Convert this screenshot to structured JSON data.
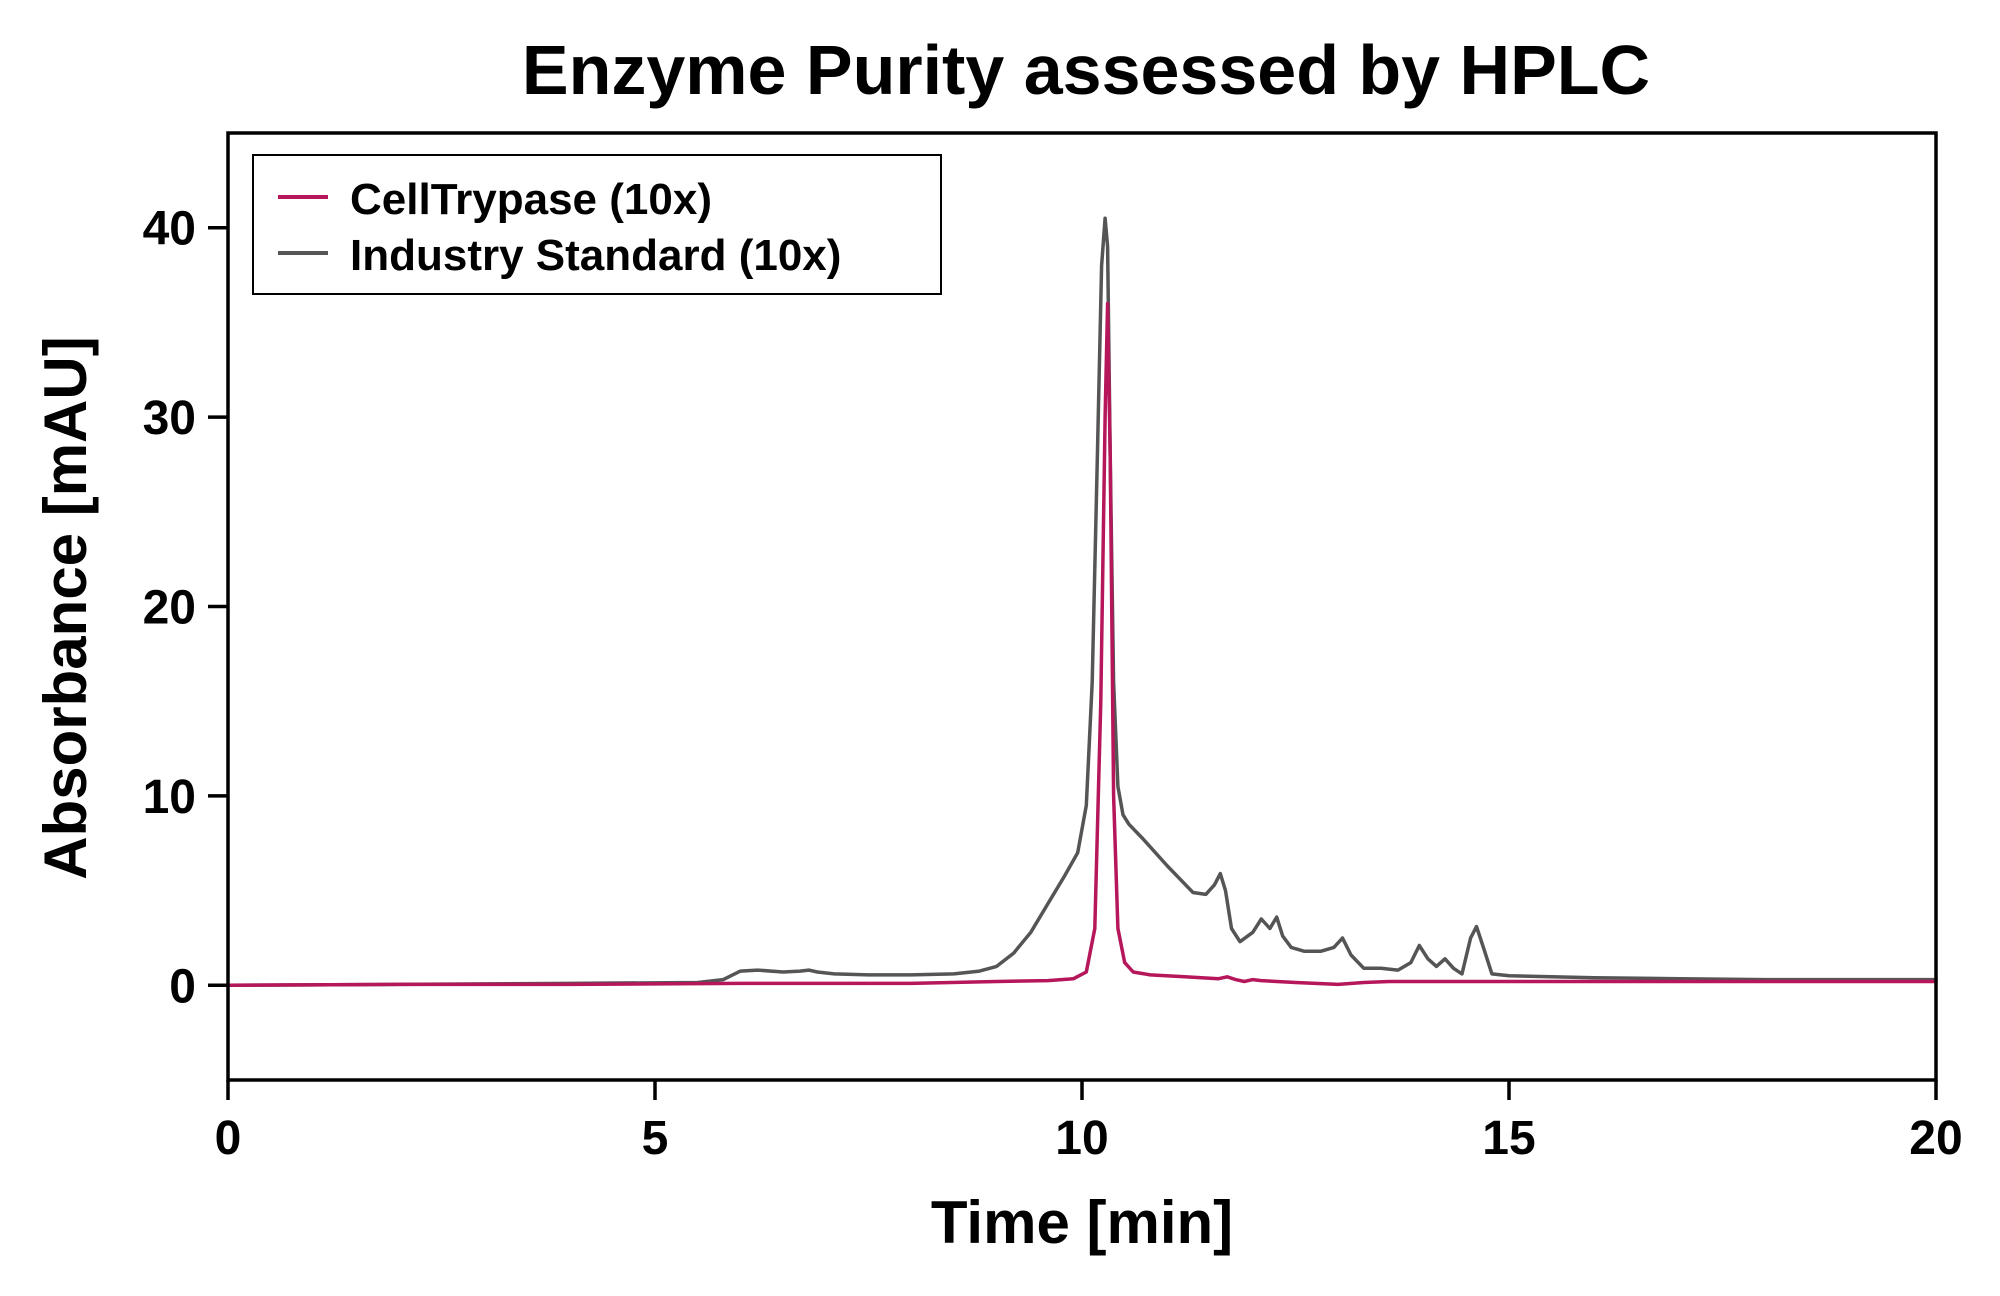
{
  "chart_data": {
    "type": "line",
    "title": "Enzyme Purity assessed by HPLC",
    "xlabel": "Time [min]",
    "ylabel": "Absorbance [mAU]",
    "xlim": [
      0,
      20
    ],
    "ylim": [
      -5,
      45
    ],
    "xticks": [
      0,
      5,
      10,
      15,
      20
    ],
    "yticks": [
      0,
      10,
      20,
      30,
      40
    ],
    "grid": false,
    "legend_position": "top-left",
    "series": [
      {
        "name": "CellTrypase (10x)",
        "color": "#b5175a",
        "x": [
          0,
          2,
          4,
          6,
          8,
          9,
          9.6,
          9.9,
          10.05,
          10.15,
          10.22,
          10.27,
          10.3,
          10.33,
          10.37,
          10.42,
          10.5,
          10.6,
          10.8,
          11.2,
          11.6,
          11.7,
          11.8,
          11.9,
          12.0,
          12.1,
          12.5,
          13.0,
          13.3,
          13.6,
          14.0,
          14.5,
          15,
          16,
          18,
          20
        ],
        "y": [
          0,
          0.05,
          0.05,
          0.1,
          0.1,
          0.2,
          0.25,
          0.35,
          0.7,
          3.0,
          15.0,
          30.0,
          36.0,
          28.0,
          10.0,
          3.0,
          1.2,
          0.7,
          0.55,
          0.45,
          0.35,
          0.45,
          0.3,
          0.2,
          0.3,
          0.25,
          0.15,
          0.05,
          0.15,
          0.2,
          0.2,
          0.2,
          0.2,
          0.2,
          0.2,
          0.2
        ]
      },
      {
        "name": "Industry Standard (10x)",
        "color": "#555555",
        "x": [
          0,
          2,
          4,
          5.5,
          5.8,
          6.0,
          6.2,
          6.5,
          6.7,
          6.8,
          6.9,
          7.1,
          7.5,
          8.0,
          8.5,
          8.8,
          9.0,
          9.2,
          9.4,
          9.6,
          9.8,
          9.95,
          10.05,
          10.12,
          10.18,
          10.23,
          10.27,
          10.3,
          10.33,
          10.37,
          10.42,
          10.48,
          10.55,
          10.7,
          11.0,
          11.3,
          11.45,
          11.55,
          11.62,
          11.68,
          11.75,
          11.85,
          12.0,
          12.1,
          12.2,
          12.28,
          12.35,
          12.45,
          12.6,
          12.8,
          12.95,
          13.05,
          13.15,
          13.3,
          13.5,
          13.7,
          13.85,
          13.95,
          14.05,
          14.15,
          14.25,
          14.35,
          14.45,
          14.55,
          14.62,
          14.7,
          14.8,
          15.0,
          15.5,
          16,
          17,
          18,
          20
        ],
        "y": [
          0,
          0.05,
          0.1,
          0.15,
          0.3,
          0.75,
          0.8,
          0.7,
          0.75,
          0.8,
          0.7,
          0.6,
          0.55,
          0.55,
          0.6,
          0.75,
          1.0,
          1.7,
          2.8,
          4.3,
          5.8,
          7.0,
          9.5,
          16.0,
          28.0,
          38.0,
          40.5,
          39.0,
          28.0,
          16.0,
          10.5,
          9.0,
          8.5,
          7.8,
          6.3,
          4.9,
          4.8,
          5.3,
          5.9,
          5.0,
          3.0,
          2.3,
          2.8,
          3.5,
          3.0,
          3.6,
          2.6,
          2.0,
          1.8,
          1.8,
          2.0,
          2.5,
          1.6,
          0.9,
          0.9,
          0.8,
          1.2,
          2.1,
          1.4,
          1.0,
          1.4,
          0.9,
          0.6,
          2.5,
          3.1,
          2.0,
          0.6,
          0.5,
          0.45,
          0.4,
          0.35,
          0.3,
          0.3
        ]
      }
    ]
  }
}
